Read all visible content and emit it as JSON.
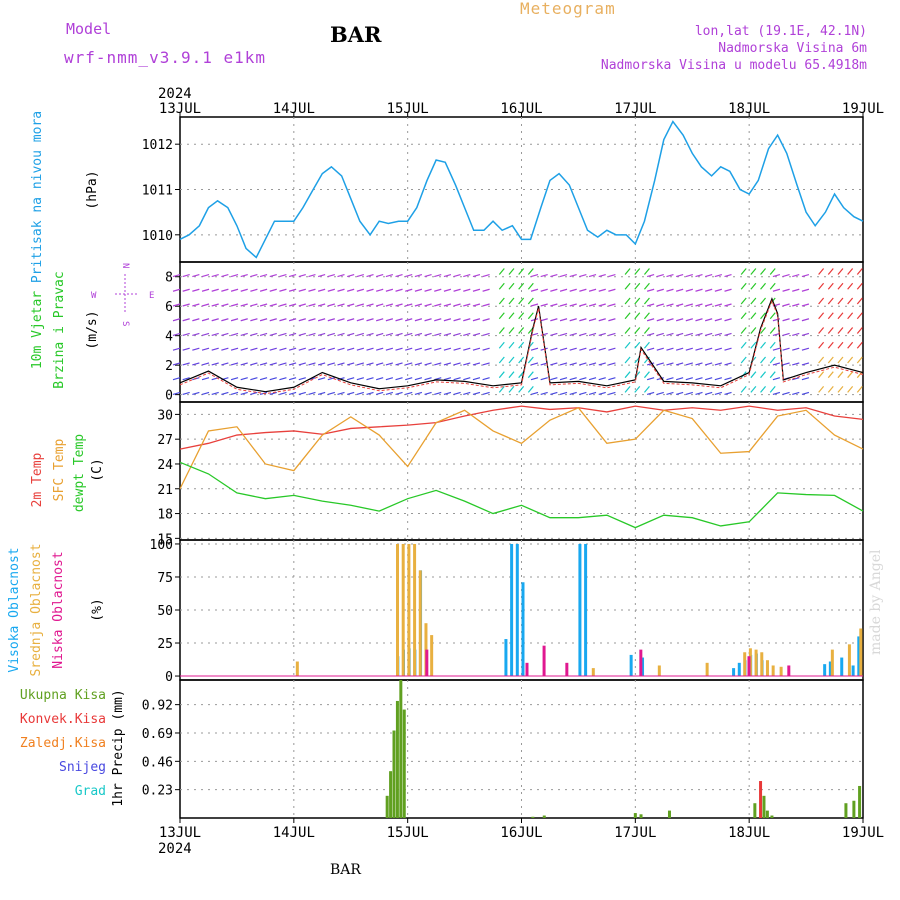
{
  "header": {
    "model_label": "Model",
    "model_name": "wrf-nmm_v3.9.1 e1km",
    "station": "BAR",
    "title": "Meteogram",
    "location": "lon,lat (19.1E, 42.1N)",
    "elevation": "Nadmorska Visina 6m",
    "model_elevation": "Nadmorska Visina u modelu 65.4918m"
  },
  "footer": {
    "station": "BAR",
    "credit": "made by Angel"
  },
  "colors": {
    "pressure": "#1ea0e6",
    "t2m": "#e8403c",
    "sfc": "#e8a030",
    "dewpt": "#28c828",
    "high_cloud": "#18a8f0",
    "mid_cloud": "#e8b040",
    "low_cloud": "#e01890",
    "total_precip": "#60a020",
    "convective": "#e83838",
    "freezing": "#f08020",
    "snow": "#4848e0",
    "hail": "#18c8c8",
    "purple": "#b040d8"
  },
  "chart_data": [
    {
      "type": "line",
      "panel": "pressure",
      "ylabel": "Pritisak na nivou mora",
      "unit": "(hPa)",
      "xlabel_year": "2024",
      "x_ticks": [
        "13JUL",
        "14JUL",
        "15JUL",
        "16JUL",
        "17JUL",
        "18JUL",
        "19JUL"
      ],
      "xlim": [
        0,
        6
      ],
      "ylim": [
        1009.4,
        1012.6
      ],
      "y_ticks": [
        1010,
        1011,
        1012
      ],
      "grid": true,
      "x": [
        0,
        0.08,
        0.17,
        0.25,
        0.33,
        0.42,
        0.5,
        0.58,
        0.67,
        0.75,
        0.83,
        0.92,
        1.0,
        1.08,
        1.17,
        1.25,
        1.33,
        1.42,
        1.5,
        1.58,
        1.67,
        1.75,
        1.83,
        1.92,
        2.0,
        2.08,
        2.17,
        2.25,
        2.33,
        2.42,
        2.5,
        2.58,
        2.67,
        2.75,
        2.83,
        2.92,
        3.0,
        3.08,
        3.17,
        3.25,
        3.33,
        3.42,
        3.5,
        3.58,
        3.67,
        3.75,
        3.83,
        3.92,
        4.0,
        4.08,
        4.17,
        4.25,
        4.33,
        4.42,
        4.5,
        4.58,
        4.67,
        4.75,
        4.83,
        4.92,
        5.0,
        5.08,
        5.17,
        5.25,
        5.33,
        5.42,
        5.5,
        5.58,
        5.67,
        5.75,
        5.83,
        5.92,
        6.0
      ],
      "values": [
        1009.9,
        1010.0,
        1010.2,
        1010.6,
        1010.75,
        1010.6,
        1010.2,
        1009.7,
        1009.5,
        1009.9,
        1010.3,
        1010.3,
        1010.3,
        1010.6,
        1011.0,
        1011.35,
        1011.5,
        1011.3,
        1010.8,
        1010.3,
        1010.0,
        1010.3,
        1010.25,
        1010.3,
        1010.3,
        1010.6,
        1011.2,
        1011.65,
        1011.6,
        1011.1,
        1010.6,
        1010.1,
        1010.1,
        1010.3,
        1010.1,
        1010.2,
        1009.9,
        1009.9,
        1010.6,
        1011.2,
        1011.35,
        1011.1,
        1010.6,
        1010.1,
        1009.95,
        1010.1,
        1010.0,
        1010.0,
        1009.8,
        1010.3,
        1011.2,
        1012.1,
        1012.5,
        1012.2,
        1011.8,
        1011.5,
        1011.3,
        1011.5,
        1011.4,
        1011.0,
        1010.9,
        1011.2,
        1011.9,
        1012.2,
        1011.8,
        1011.1,
        1010.5,
        1010.2,
        1010.5,
        1010.9,
        1010.6,
        1010.4,
        1010.3
      ],
      "series_color_key": "pressure"
    },
    {
      "type": "line",
      "panel": "wind",
      "ylabel_1": "10m Vjetar",
      "ylabel_2": "Brzina i Pravac",
      "unit": "(m/s)",
      "compass": {
        "n": "N",
        "s": "S",
        "e": "E",
        "w": "W"
      },
      "ylim": [
        -0.5,
        9
      ],
      "y_ticks": [
        0,
        2,
        4,
        6,
        8
      ],
      "grid": true,
      "x": [
        0,
        0.25,
        0.5,
        0.75,
        1.0,
        1.25,
        1.5,
        1.75,
        2.0,
        2.25,
        2.5,
        2.75,
        3.0,
        3.1,
        3.15,
        3.25,
        3.5,
        3.75,
        4.0,
        4.05,
        4.25,
        4.5,
        4.75,
        5.0,
        5.1,
        5.2,
        5.25,
        5.3,
        5.5,
        5.75,
        6.0
      ],
      "values": [
        0.8,
        1.6,
        0.5,
        0.2,
        0.5,
        1.5,
        0.8,
        0.4,
        0.6,
        1.0,
        0.9,
        0.6,
        0.8,
        4.5,
        6.0,
        0.8,
        0.9,
        0.6,
        1.0,
        3.2,
        0.9,
        0.8,
        0.6,
        1.5,
        4.5,
        6.5,
        5.5,
        1.0,
        1.5,
        2.0,
        1.5
      ],
      "series_color_key": "t2m"
    },
    {
      "type": "line",
      "panel": "temperature",
      "labels": [
        "2m Temp",
        "SFC Temp",
        "dewpt Temp"
      ],
      "unit": "(C)",
      "ylim": [
        14.8,
        31.5
      ],
      "y_ticks": [
        15,
        18,
        21,
        24,
        27,
        30
      ],
      "grid": true,
      "x": [
        0,
        0.25,
        0.5,
        0.75,
        1.0,
        1.25,
        1.5,
        1.75,
        2.0,
        2.25,
        2.5,
        2.75,
        3.0,
        3.25,
        3.5,
        3.75,
        4.0,
        4.25,
        4.5,
        4.75,
        5.0,
        5.25,
        5.5,
        5.75,
        6.0
      ],
      "series": [
        {
          "name": "2m Temp",
          "color_key": "t2m",
          "values": [
            25.8,
            26.5,
            27.5,
            27.8,
            28.0,
            27.6,
            28.3,
            28.5,
            28.7,
            29.0,
            29.8,
            30.5,
            31.0,
            30.6,
            30.8,
            30.3,
            31.0,
            30.5,
            30.8,
            30.5,
            31.0,
            30.5,
            30.8,
            29.8,
            29.4
          ]
        },
        {
          "name": "SFC Temp",
          "color_key": "sfc",
          "values": [
            21.0,
            28.0,
            28.5,
            24.0,
            23.2,
            27.5,
            29.7,
            27.5,
            23.7,
            29.0,
            30.5,
            28.0,
            26.5,
            29.3,
            30.8,
            26.5,
            27.0,
            30.5,
            29.5,
            25.3,
            25.5,
            29.8,
            30.5,
            27.5,
            25.8
          ]
        },
        {
          "name": "dewpt Temp",
          "color_key": "dewpt",
          "values": [
            24.2,
            22.8,
            20.5,
            19.8,
            20.2,
            19.5,
            19.0,
            18.3,
            19.8,
            20.8,
            19.5,
            18.0,
            19.0,
            17.5,
            17.5,
            17.8,
            16.3,
            17.8,
            17.5,
            16.5,
            17.0,
            20.5,
            20.3,
            20.2,
            18.3
          ]
        }
      ]
    },
    {
      "type": "bar",
      "panel": "cloud",
      "labels": [
        "Visoka Oblacnost",
        "Srednja Oblacnost",
        "Niska Oblacnost"
      ],
      "unit": "(%)",
      "ylim": [
        -3,
        103
      ],
      "y_ticks": [
        0,
        25,
        50,
        75,
        100
      ],
      "grid": true,
      "series": [
        {
          "name": "Visoka Oblacnost",
          "color_key": "high_cloud",
          "x": [
            1.9,
            1.95,
            2.0,
            2.05,
            2.1,
            2.15,
            2.85,
            2.9,
            2.95,
            3.0,
            3.5,
            3.55,
            3.95,
            4.05,
            4.85,
            4.9,
            4.95,
            5.0,
            5.05,
            5.1,
            5.65,
            5.7,
            5.8,
            5.9,
            5.95
          ],
          "values": [
            15,
            20,
            21,
            20,
            80,
            16,
            28,
            100,
            100,
            71,
            100,
            100,
            16,
            14,
            6,
            10,
            12,
            16,
            17,
            12,
            9,
            11,
            14,
            8,
            30
          ]
        },
        {
          "name": "Srednja Oblacnost",
          "color_key": "mid_cloud",
          "x": [
            1.0,
            1.88,
            1.93,
            1.98,
            2.03,
            2.08,
            2.13,
            2.18,
            3.6,
            4.18,
            4.6,
            4.93,
            4.98,
            5.03,
            5.08,
            5.13,
            5.18,
            5.25,
            5.7,
            5.85,
            5.95
          ],
          "values": [
            11,
            100,
            100,
            100,
            100,
            80,
            40,
            31,
            6,
            8,
            10,
            18,
            21,
            20,
            18,
            12,
            8,
            7,
            20,
            24,
            36
          ]
        },
        {
          "name": "Niska Oblacnost",
          "color_key": "low_cloud",
          "x": [
            2.12,
            3.0,
            3.15,
            3.35,
            4.0,
            4.95,
            5.3
          ],
          "values": [
            20,
            10,
            23,
            10,
            20,
            15,
            8
          ]
        }
      ]
    },
    {
      "type": "bar",
      "panel": "precip",
      "labels": [
        "Ukupna Kisa",
        "Konvek.Kisa",
        "Zaledj.Kisa",
        "Snijeg",
        "Grad"
      ],
      "unit": "1hr Precip (mm)",
      "ylim": [
        0,
        1.12
      ],
      "y_ticks": [
        0.23,
        0.46,
        0.69,
        0.92
      ],
      "y_tick_labels": [
        "0.23",
        "0.46",
        "0.69",
        "0.92"
      ],
      "grid": true,
      "x_ticks": [
        "13JUL",
        "14JUL",
        "15JUL",
        "16JUL",
        "17JUL",
        "18JUL",
        "19JUL"
      ],
      "xlabel_year": "2024",
      "x": [
        1.82,
        1.85,
        1.88,
        1.91,
        1.94,
        1.97,
        3.1,
        3.2,
        4.0,
        4.05,
        4.3,
        5.05,
        5.1,
        5.13,
        5.16,
        5.2,
        5.85,
        5.92,
        5.97
      ],
      "values": [
        0.18,
        0.38,
        0.71,
        0.95,
        1.12,
        0.88,
        0.01,
        0.02,
        0.04,
        0.03,
        0.06,
        0.12,
        0.3,
        0.18,
        0.06,
        0.02,
        0.12,
        0.14,
        0.26
      ],
      "series_color_key": "total_precip",
      "highlight_color_key": "convective",
      "highlight_index": 12
    }
  ]
}
